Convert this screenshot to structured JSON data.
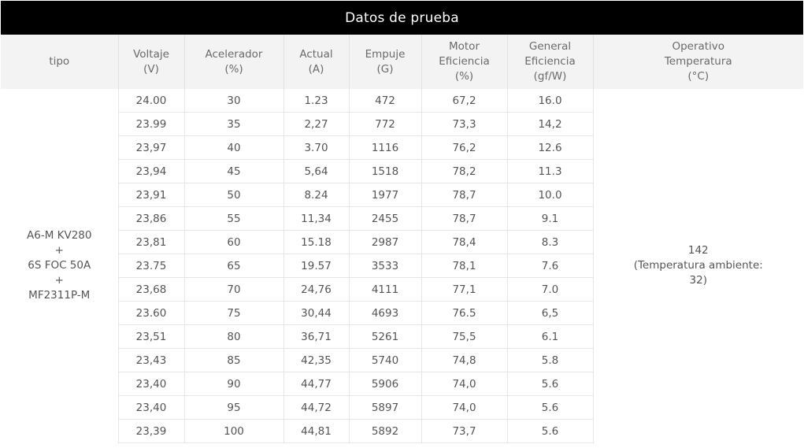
{
  "title": "Datos de prueba",
  "headers": [
    {
      "lines": [
        "tipo"
      ]
    },
    {
      "lines": [
        "Voltaje",
        "(V)"
      ]
    },
    {
      "lines": [
        "Acelerador",
        "(%)"
      ]
    },
    {
      "lines": [
        "Actual",
        "(A)"
      ]
    },
    {
      "lines": [
        "Empuje",
        "(G)"
      ]
    },
    {
      "lines": [
        "Motor",
        "Eficiencia",
        "(%)"
      ]
    },
    {
      "lines": [
        "General",
        "Eficiencia",
        "(gf/W)"
      ]
    },
    {
      "lines": [
        "Operativo",
        "Temperatura",
        "(°C)"
      ]
    }
  ],
  "tipo": [
    "A6-M KV280",
    "+",
    "6S FOC 50A",
    "+",
    "MF2311P-M"
  ],
  "temperature": [
    "142",
    "(Temperatura ambiente:",
    "32)"
  ],
  "rows": [
    [
      "24.00",
      "30",
      "1.23",
      "472",
      "67,2",
      "16.0"
    ],
    [
      "23.99",
      "35",
      "2,27",
      "772",
      "73,3",
      "14,2"
    ],
    [
      "23,97",
      "40",
      "3.70",
      "1116",
      "76,2",
      "12.6"
    ],
    [
      "23,94",
      "45",
      "5,64",
      "1518",
      "78,2",
      "11.3"
    ],
    [
      "23,91",
      "50",
      "8.24",
      "1977",
      "78,7",
      "10.0"
    ],
    [
      "23,86",
      "55",
      "11,34",
      "2455",
      "78,7",
      "9.1"
    ],
    [
      "23,81",
      "60",
      "15.18",
      "2987",
      "78,4",
      "8.3"
    ],
    [
      "23.75",
      "65",
      "19.57",
      "3533",
      "78,1",
      "7.6"
    ],
    [
      "23,68",
      "70",
      "24,76",
      "4111",
      "77,1",
      "7.0"
    ],
    [
      "23.60",
      "75",
      "30,44",
      "4693",
      "76.5",
      "6,5"
    ],
    [
      "23,51",
      "80",
      "36,71",
      "5261",
      "75,5",
      "6.1"
    ],
    [
      "23,43",
      "85",
      "42,35",
      "5740",
      "74,8",
      "5.8"
    ],
    [
      "23,40",
      "90",
      "44,77",
      "5906",
      "74,0",
      "5.6"
    ],
    [
      "23,40",
      "95",
      "44,72",
      "5897",
      "74,0",
      "5.6"
    ],
    [
      "23,39",
      "100",
      "44,81",
      "5892",
      "73,7",
      "5.6"
    ]
  ]
}
